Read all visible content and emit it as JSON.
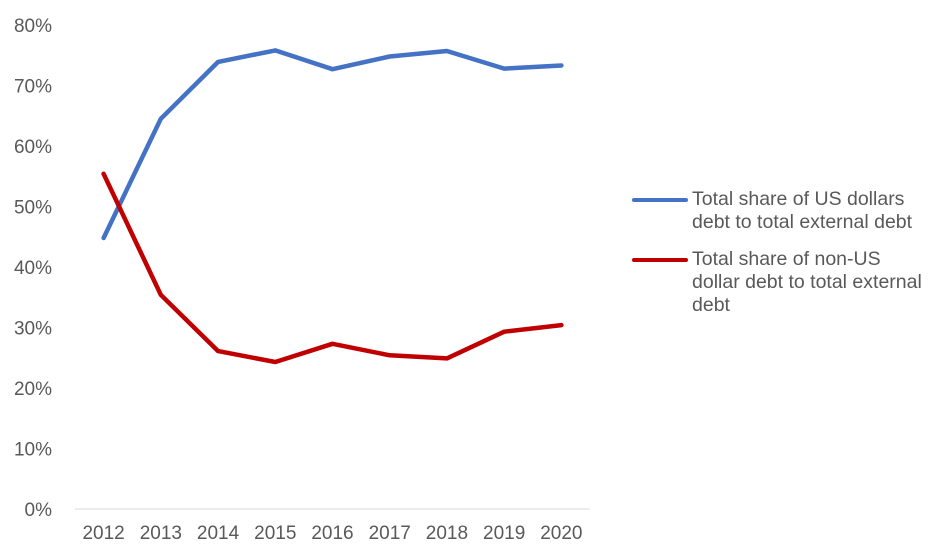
{
  "chart_data": {
    "type": "line",
    "title": "",
    "xlabel": "",
    "ylabel": "",
    "categories": [
      "2012",
      "2013",
      "2014",
      "2015",
      "2016",
      "2017",
      "2018",
      "2019",
      "2020"
    ],
    "ylim": [
      0,
      80
    ],
    "y_ticks": [
      "0%",
      "10%",
      "20%",
      "30%",
      "40%",
      "50%",
      "60%",
      "70%",
      "80%"
    ],
    "y_tick_values": [
      0,
      10,
      20,
      30,
      40,
      50,
      60,
      70,
      80
    ],
    "grid": false,
    "legend_position": "right",
    "series": [
      {
        "name": "Total share of US dollars debt to total external debt",
        "color": "#4472C4",
        "values": [
          44.8,
          64.5,
          73.9,
          75.8,
          72.7,
          74.8,
          75.7,
          72.8,
          73.3
        ]
      },
      {
        "name": "Total share of non-US dollar debt to total external debt",
        "color": "#C00000",
        "values": [
          55.4,
          35.4,
          26.1,
          24.3,
          27.3,
          25.4,
          24.9,
          29.3,
          30.4
        ]
      }
    ]
  }
}
